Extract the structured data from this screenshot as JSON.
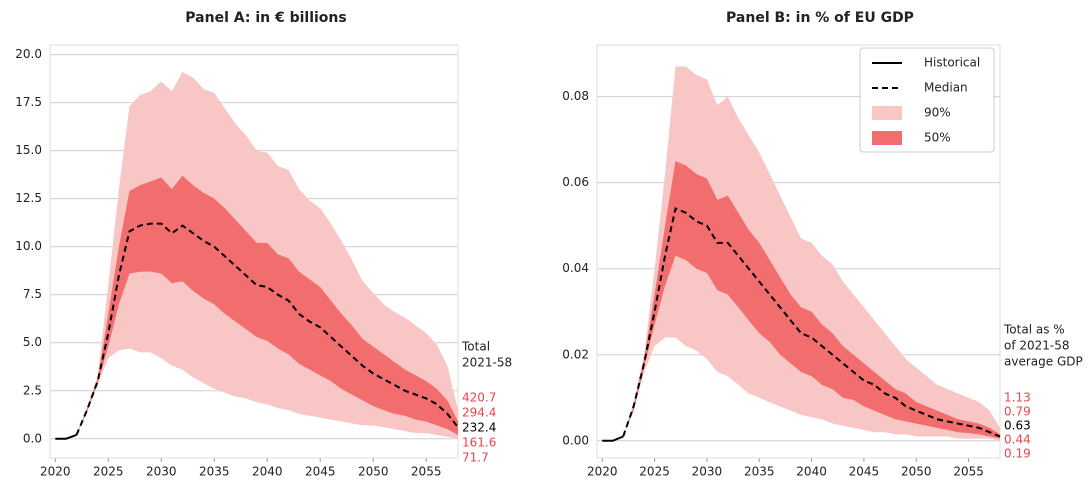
{
  "chart_data": [
    {
      "type": "fan",
      "title": "Panel A: in € billions",
      "x": [
        2020,
        2021,
        2022,
        2023,
        2024,
        2025,
        2026,
        2027,
        2028,
        2029,
        2030,
        2031,
        2032,
        2033,
        2034,
        2035,
        2036,
        2037,
        2038,
        2039,
        2040,
        2041,
        2042,
        2043,
        2044,
        2045,
        2046,
        2047,
        2048,
        2049,
        2050,
        2051,
        2052,
        2053,
        2054,
        2055,
        2056,
        2057,
        2058
      ],
      "xlim": [
        2019.5,
        2058
      ],
      "xticks": [
        2020,
        2025,
        2030,
        2035,
        2040,
        2045,
        2050,
        2055
      ],
      "ylim": [
        -1,
        20.5
      ],
      "yticks": [
        {
          "value": 0,
          "label": "0.0"
        },
        2.5,
        {
          "value": 5,
          "label": "5.0"
        },
        7.5,
        {
          "value": 10,
          "label": "10.0"
        },
        12.5,
        {
          "value": 15,
          "label": "15.0"
        },
        17.5,
        {
          "value": 20,
          "label": "20.0"
        }
      ],
      "grid": true,
      "bands": [
        {
          "color": "#f9c6c6",
          "upper": [
            null,
            null,
            0.2,
            1.6,
            3.3,
            8,
            13,
            17.3,
            17.9,
            18.1,
            18.6,
            18.1,
            19.1,
            18.8,
            18.2,
            18.0,
            17.2,
            16.4,
            15.8,
            15.0,
            14.9,
            14.2,
            14.0,
            13.0,
            12.4,
            12.0,
            11.2,
            10.3,
            9.3,
            8.2,
            7.6,
            7.0,
            6.6,
            6.3,
            5.9,
            5.5,
            4.9,
            3.8,
            1.5
          ],
          "lower": [
            null,
            null,
            0.2,
            1.5,
            2.8,
            4.2,
            4.6,
            4.7,
            4.5,
            4.5,
            4.2,
            3.8,
            3.6,
            3.2,
            2.9,
            2.6,
            2.4,
            2.2,
            2.1,
            1.9,
            1.8,
            1.6,
            1.5,
            1.3,
            1.2,
            1.1,
            1.0,
            0.9,
            0.8,
            0.7,
            0.7,
            0.6,
            0.5,
            0.4,
            0.3,
            0.3,
            0.2,
            0.1,
            0.0
          ]
        },
        {
          "color": "#f26d6d",
          "upper": [
            null,
            null,
            0.2,
            1.6,
            3.1,
            6.5,
            10,
            12.9,
            13.2,
            13.4,
            13.6,
            13.0,
            13.7,
            13.2,
            12.8,
            12.5,
            12.0,
            11.4,
            10.8,
            10.2,
            10.2,
            9.6,
            9.4,
            8.7,
            8.3,
            7.9,
            7.2,
            6.5,
            5.9,
            5.2,
            4.8,
            4.4,
            4.0,
            3.6,
            3.3,
            3.0,
            2.6,
            2.0,
            0.9
          ],
          "lower": [
            null,
            null,
            0.2,
            1.4,
            2.9,
            4.8,
            7,
            8.6,
            8.7,
            8.7,
            8.6,
            8.1,
            8.2,
            7.7,
            7.3,
            7.0,
            6.5,
            6.1,
            5.7,
            5.3,
            5.1,
            4.7,
            4.4,
            3.9,
            3.6,
            3.3,
            3.0,
            2.6,
            2.3,
            2.0,
            1.7,
            1.5,
            1.3,
            1.2,
            1.0,
            0.9,
            0.7,
            0.5,
            0.2
          ]
        }
      ],
      "series": [
        {
          "color": "#000000",
          "line": "solid",
          "values": [
            0,
            0,
            0.2,
            null,
            null,
            null,
            null,
            null,
            null,
            null,
            null,
            null,
            null,
            null,
            null,
            null,
            null,
            null,
            null,
            null,
            null,
            null,
            null,
            null,
            null,
            null,
            null,
            null,
            null,
            null,
            null,
            null,
            null,
            null,
            null,
            null,
            null,
            null,
            null
          ]
        },
        {
          "color": "#000000",
          "line": "dashed",
          "values": [
            null,
            null,
            0.2,
            1.5,
            3.0,
            5.5,
            8.5,
            10.8,
            11.1,
            11.2,
            11.2,
            10.7,
            11.1,
            10.7,
            10.3,
            10.0,
            9.5,
            9.0,
            8.5,
            8.0,
            7.9,
            7.5,
            7.2,
            6.5,
            6.1,
            5.8,
            5.3,
            4.8,
            4.3,
            3.8,
            3.4,
            3.1,
            2.8,
            2.5,
            2.3,
            2.1,
            1.8,
            1.3,
            0.6
          ]
        }
      ],
      "totals": {
        "title": [
          "Total",
          "2021-58"
        ],
        "values": [
          420.7,
          294.4,
          232.4,
          161.6,
          71.7
        ],
        "colors": [
          "#e8474c",
          "#e8474c",
          "#000000",
          "#e8474c",
          "#e8474c"
        ]
      }
    },
    {
      "type": "fan",
      "title": "Panel B: in % of EU GDP",
      "x": [
        2020,
        2021,
        2022,
        2023,
        2024,
        2025,
        2026,
        2027,
        2028,
        2029,
        2030,
        2031,
        2032,
        2033,
        2034,
        2035,
        2036,
        2037,
        2038,
        2039,
        2040,
        2041,
        2042,
        2043,
        2044,
        2045,
        2046,
        2047,
        2048,
        2049,
        2050,
        2051,
        2052,
        2053,
        2054,
        2055,
        2056,
        2057,
        2058
      ],
      "xlim": [
        2019.5,
        2058
      ],
      "xticks": [
        2020,
        2025,
        2030,
        2035,
        2040,
        2045,
        2050,
        2055
      ],
      "ylim": [
        -0.004,
        0.092
      ],
      "yticks": [
        {
          "value": 0,
          "label": "0.00"
        },
        0.02,
        0.04,
        0.06,
        0.08
      ],
      "grid": true,
      "legend": "upper right",
      "bands": [
        {
          "name": "90%",
          "color": "#f9c6c6",
          "upper": [
            null,
            null,
            0.001,
            0.009,
            0.02,
            0.04,
            0.062,
            0.087,
            0.087,
            0.085,
            0.084,
            0.078,
            0.08,
            0.075,
            0.071,
            0.067,
            0.062,
            0.057,
            0.052,
            0.047,
            0.046,
            0.043,
            0.041,
            0.037,
            0.034,
            0.031,
            0.028,
            0.025,
            0.022,
            0.019,
            0.017,
            0.015,
            0.013,
            0.012,
            0.011,
            0.01,
            0.009,
            0.007,
            0.003
          ],
          "lower": [
            null,
            null,
            0.001,
            0.007,
            0.016,
            0.022,
            0.024,
            0.024,
            0.022,
            0.021,
            0.019,
            0.016,
            0.015,
            0.013,
            0.011,
            0.01,
            0.009,
            0.008,
            0.007,
            0.006,
            0.0055,
            0.005,
            0.004,
            0.0035,
            0.003,
            0.0025,
            0.002,
            0.002,
            0.0015,
            0.0015,
            0.001,
            0.001,
            0.001,
            0.001,
            0.0005,
            0.0005,
            0.0005,
            0.0005,
            0
          ]
        },
        {
          "name": "50%",
          "color": "#f26d6d",
          "upper": [
            null,
            null,
            0.001,
            0.008,
            0.019,
            0.034,
            0.05,
            0.065,
            0.064,
            0.062,
            0.061,
            0.056,
            0.057,
            0.053,
            0.049,
            0.046,
            0.042,
            0.038,
            0.034,
            0.031,
            0.03,
            0.027,
            0.025,
            0.022,
            0.02,
            0.018,
            0.016,
            0.014,
            0.012,
            0.011,
            0.009,
            0.008,
            0.007,
            0.006,
            0.005,
            0.0045,
            0.004,
            0.003,
            0.0015
          ],
          "lower": [
            null,
            null,
            0.001,
            0.007,
            0.017,
            0.027,
            0.036,
            0.043,
            0.042,
            0.04,
            0.039,
            0.035,
            0.034,
            0.031,
            0.028,
            0.025,
            0.023,
            0.02,
            0.018,
            0.016,
            0.015,
            0.013,
            0.012,
            0.01,
            0.0095,
            0.008,
            0.007,
            0.006,
            0.005,
            0.0045,
            0.004,
            0.0035,
            0.003,
            0.0025,
            0.002,
            0.0018,
            0.0015,
            0.001,
            0.0005
          ]
        }
      ],
      "series": [
        {
          "name": "Historical",
          "color": "#000000",
          "line": "solid",
          "values": [
            0,
            0,
            0.001,
            null,
            null,
            null,
            null,
            null,
            null,
            null,
            null,
            null,
            null,
            null,
            null,
            null,
            null,
            null,
            null,
            null,
            null,
            null,
            null,
            null,
            null,
            null,
            null,
            null,
            null,
            null,
            null,
            null,
            null,
            null,
            null,
            null,
            null,
            null,
            null
          ]
        },
        {
          "name": "Median",
          "color": "#000000",
          "line": "dashed",
          "values": [
            null,
            null,
            0.001,
            0.008,
            0.018,
            0.03,
            0.043,
            0.054,
            0.053,
            0.051,
            0.05,
            0.046,
            0.046,
            0.043,
            0.04,
            0.037,
            0.034,
            0.031,
            0.028,
            0.025,
            0.024,
            0.022,
            0.02,
            0.018,
            0.016,
            0.014,
            0.013,
            0.011,
            0.01,
            0.008,
            0.007,
            0.006,
            0.005,
            0.0045,
            0.004,
            0.0035,
            0.003,
            0.002,
            0.001
          ]
        }
      ],
      "totals": {
        "title": [
          "Total as %",
          "of 2021-58",
          "average GDP"
        ],
        "values": [
          1.13,
          0.79,
          0.63,
          0.44,
          0.19
        ],
        "colors": [
          "#e8474c",
          "#e8474c",
          "#000000",
          "#e8474c",
          "#e8474c"
        ]
      }
    }
  ]
}
